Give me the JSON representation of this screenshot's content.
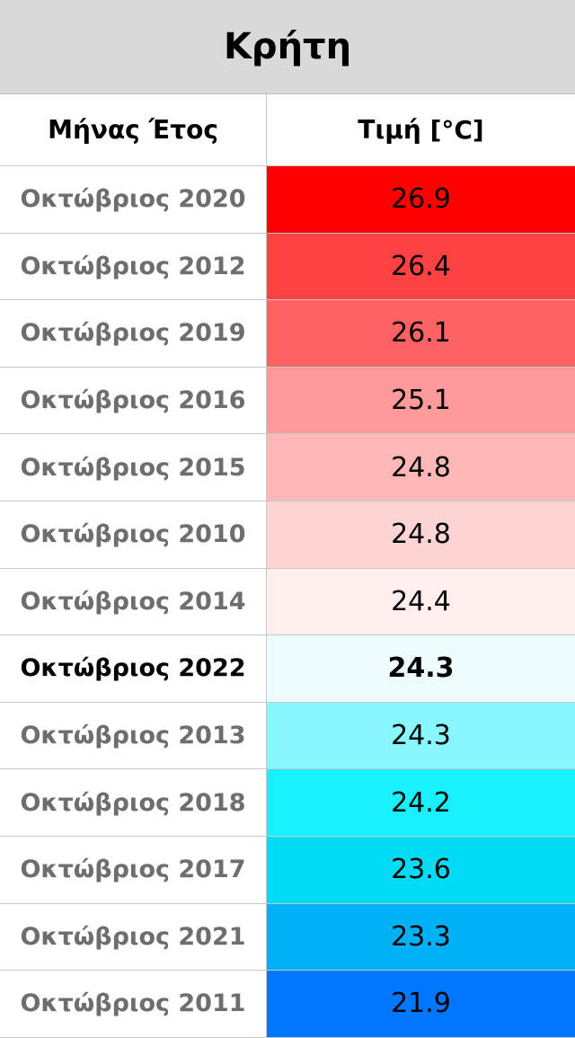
{
  "title": "Κρήτη",
  "table": {
    "header": [
      "Μήνας Έτος",
      "Τιμή [°C]"
    ],
    "rows": [
      {
        "label": "Οκτώβριος 2020",
        "value": 26.9,
        "color": "#ff0000"
      },
      {
        "label": "Οκτώβριος 2012",
        "value": 26.4,
        "color": "#ff4141"
      },
      {
        "label": "Οκτώβριος 2019",
        "value": 26.1,
        "color": "#ff6262"
      },
      {
        "label": "Οκτώβριος 2016",
        "value": 25.1,
        "color": "#ff9a9a"
      },
      {
        "label": "Οκτώβριος 2015",
        "value": 24.8,
        "color": "#ffb7b7"
      },
      {
        "label": "Οκτώβριος 2010",
        "value": 24.8,
        "color": "#ffd4d4"
      },
      {
        "label": "Οκτώβριος 2014",
        "value": 24.4,
        "color": "#ffeeee"
      },
      {
        "label": "Οκτώβριος 2022",
        "value": 24.3,
        "color": "#edfdfe",
        "bold": true
      },
      {
        "label": "Οκτώβριος 2013",
        "value": 24.3,
        "color": "#88f7ff"
      },
      {
        "label": "Οκτώβριος 2018",
        "value": 24.2,
        "color": "#17f0ff"
      },
      {
        "label": "Οκτώβριος 2017",
        "value": 23.6,
        "color": "#00dcf5"
      },
      {
        "label": "Οκτώβριος 2021",
        "value": 23.3,
        "color": "#00b0f4"
      },
      {
        "label": "Οκτώβριος 2011",
        "value": 21.9,
        "color": "#0077ff"
      }
    ]
  }
}
